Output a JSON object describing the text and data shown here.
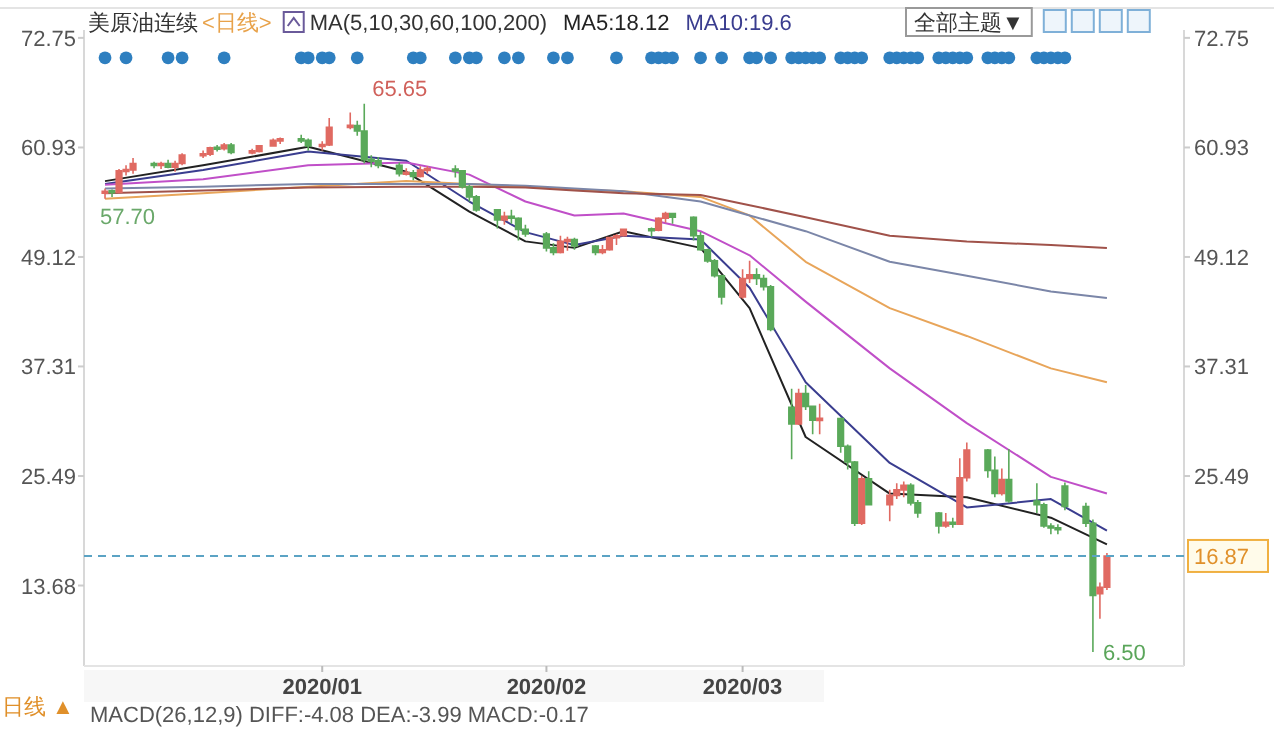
{
  "chart_data": {
    "type": "candlestick",
    "title": "美原油连续",
    "subtitle": "<日线>",
    "legend_title": "MA(5,10,30,60,100,200)",
    "legend": "top",
    "x": [
      "2019-12-02",
      "2019-12-03",
      "2019-12-04",
      "2019-12-05",
      "2019-12-06",
      "2019-12-09",
      "2019-12-10",
      "2019-12-11",
      "2019-12-12",
      "2019-12-13",
      "2019-12-16",
      "2019-12-17",
      "2019-12-18",
      "2019-12-19",
      "2019-12-20",
      "2019-12-23",
      "2019-12-24",
      "2019-12-26",
      "2019-12-27",
      "2019-12-30",
      "2019-12-31",
      "2020-01-02",
      "2020-01-03",
      "2020-01-06",
      "2020-01-07",
      "2020-01-08",
      "2020-01-09",
      "2020-01-10",
      "2020-01-13",
      "2020-01-14",
      "2020-01-15",
      "2020-01-16",
      "2020-01-17",
      "2020-01-21",
      "2020-01-22",
      "2020-01-23",
      "2020-01-24",
      "2020-01-27",
      "2020-01-28",
      "2020-01-29",
      "2020-01-30",
      "2020-01-31",
      "2020-02-03",
      "2020-02-04",
      "2020-02-05",
      "2020-02-06",
      "2020-02-07",
      "2020-02-10",
      "2020-02-11",
      "2020-02-12",
      "2020-02-13",
      "2020-02-14",
      "2020-02-18",
      "2020-02-19",
      "2020-02-20",
      "2020-02-21",
      "2020-02-24",
      "2020-02-25",
      "2020-02-26",
      "2020-02-27",
      "2020-02-28",
      "2020-03-02",
      "2020-03-03",
      "2020-03-04",
      "2020-03-05",
      "2020-03-06",
      "2020-03-09",
      "2020-03-10",
      "2020-03-11",
      "2020-03-12",
      "2020-03-13",
      "2020-03-16",
      "2020-03-17",
      "2020-03-18",
      "2020-03-19",
      "2020-03-20",
      "2020-03-23",
      "2020-03-24",
      "2020-03-25",
      "2020-03-26",
      "2020-03-27",
      "2020-03-30",
      "2020-03-31",
      "2020-04-01",
      "2020-04-02",
      "2020-04-03",
      "2020-04-06",
      "2020-04-07",
      "2020-04-08",
      "2020-04-09",
      "2020-04-13",
      "2020-04-14",
      "2020-04-15",
      "2020-04-16",
      "2020-04-17",
      "2020-04-20",
      "2020-04-21",
      "2020-04-22",
      "2020-04-23"
    ],
    "ohlc": [
      [
        56.0,
        56.5,
        55.4,
        56.2
      ],
      [
        56.2,
        56.4,
        55.6,
        56.1
      ],
      [
        56.1,
        58.6,
        56.0,
        58.4
      ],
      [
        58.4,
        59.0,
        57.9,
        58.5
      ],
      [
        58.5,
        59.8,
        58.1,
        59.2
      ],
      [
        59.2,
        59.4,
        58.7,
        59.0
      ],
      [
        59.0,
        59.4,
        58.6,
        59.2
      ],
      [
        59.2,
        59.6,
        58.7,
        58.8
      ],
      [
        58.8,
        59.5,
        58.3,
        59.2
      ],
      [
        59.2,
        60.3,
        59.0,
        60.1
      ],
      [
        60.1,
        60.6,
        59.8,
        60.2
      ],
      [
        60.2,
        61.0,
        60.0,
        60.9
      ],
      [
        60.9,
        61.2,
        60.5,
        60.8
      ],
      [
        60.8,
        61.4,
        60.6,
        61.2
      ],
      [
        61.2,
        61.4,
        60.2,
        60.4
      ],
      [
        60.4,
        60.8,
        60.2,
        60.5
      ],
      [
        60.5,
        61.2,
        60.4,
        61.1
      ],
      [
        61.1,
        61.9,
        61.0,
        61.7
      ],
      [
        61.7,
        62.0,
        61.3,
        61.8
      ],
      [
        61.8,
        62.3,
        61.4,
        61.7
      ],
      [
        61.7,
        61.9,
        60.6,
        61.1
      ],
      [
        61.1,
        61.6,
        60.6,
        61.2
      ],
      [
        61.2,
        64.1,
        61.1,
        63.1
      ],
      [
        63.1,
        64.7,
        62.9,
        63.3
      ],
      [
        63.3,
        63.8,
        62.2,
        62.7
      ],
      [
        62.7,
        65.65,
        59.2,
        59.6
      ],
      [
        59.6,
        60.1,
        58.8,
        59.5
      ],
      [
        59.5,
        59.9,
        58.7,
        59.0
      ],
      [
        59.0,
        59.3,
        57.8,
        58.1
      ],
      [
        58.1,
        58.7,
        57.9,
        58.2
      ],
      [
        58.2,
        58.5,
        57.4,
        57.8
      ],
      [
        57.8,
        58.9,
        57.7,
        58.5
      ],
      [
        58.5,
        58.9,
        58.1,
        58.6
      ],
      [
        58.6,
        59.0,
        57.7,
        58.4
      ],
      [
        58.4,
        58.5,
        56.5,
        56.7
      ],
      [
        56.7,
        56.9,
        55.1,
        55.6
      ],
      [
        55.6,
        55.8,
        54.0,
        54.2
      ],
      [
        54.2,
        54.3,
        52.2,
        53.1
      ],
      [
        53.1,
        54.0,
        52.6,
        53.5
      ],
      [
        53.5,
        54.2,
        52.7,
        53.3
      ],
      [
        53.3,
        53.4,
        50.9,
        52.1
      ],
      [
        52.1,
        52.6,
        51.3,
        51.6
      ],
      [
        51.6,
        51.8,
        49.7,
        50.1
      ],
      [
        50.1,
        50.6,
        49.3,
        49.6
      ],
      [
        49.6,
        51.4,
        49.5,
        50.8
      ],
      [
        50.8,
        51.3,
        49.8,
        51.0
      ],
      [
        51.0,
        51.2,
        49.9,
        50.3
      ],
      [
        50.3,
        50.4,
        49.3,
        49.6
      ],
      [
        49.6,
        50.4,
        49.4,
        49.9
      ],
      [
        49.9,
        51.3,
        49.8,
        51.2
      ],
      [
        51.2,
        51.6,
        50.4,
        51.4
      ],
      [
        51.4,
        52.2,
        51.3,
        52.1
      ],
      [
        52.1,
        52.3,
        51.3,
        52.0
      ],
      [
        52.0,
        53.4,
        51.9,
        53.3
      ],
      [
        53.3,
        54.0,
        52.8,
        53.8
      ],
      [
        53.8,
        53.9,
        52.7,
        53.4
      ],
      [
        53.4,
        53.5,
        50.9,
        51.4
      ],
      [
        51.4,
        51.8,
        49.8,
        49.9
      ],
      [
        49.9,
        50.0,
        48.5,
        48.7
      ],
      [
        48.7,
        48.9,
        46.9,
        47.1
      ],
      [
        47.1,
        47.2,
        44.0,
        44.8
      ],
      [
        44.8,
        47.8,
        44.6,
        46.8
      ],
      [
        46.8,
        48.7,
        46.3,
        47.2
      ],
      [
        47.2,
        47.9,
        46.1,
        46.8
      ],
      [
        46.8,
        47.2,
        45.5,
        45.9
      ],
      [
        45.9,
        46.1,
        41.1,
        41.3
      ],
      [
        32.9,
        34.9,
        27.3,
        31.1
      ],
      [
        31.1,
        34.9,
        31.0,
        34.4
      ],
      [
        34.4,
        35.3,
        32.6,
        33.0
      ],
      [
        33.0,
        33.1,
        30.0,
        31.5
      ],
      [
        31.5,
        33.3,
        30.0,
        31.7
      ],
      [
        31.7,
        31.8,
        28.0,
        28.7
      ],
      [
        28.7,
        28.9,
        26.2,
        27.0
      ],
      [
        27.0,
        27.1,
        20.1,
        20.4
      ],
      [
        20.4,
        25.5,
        20.2,
        25.2
      ],
      [
        25.2,
        26.0,
        22.3,
        22.4
      ],
      [
        22.4,
        24.0,
        20.6,
        23.4
      ],
      [
        23.4,
        24.7,
        23.0,
        24.0
      ],
      [
        24.0,
        24.9,
        23.2,
        24.5
      ],
      [
        24.5,
        24.7,
        22.3,
        22.6
      ],
      [
        22.6,
        22.9,
        21.0,
        21.5
      ],
      [
        21.5,
        21.6,
        19.3,
        20.1
      ],
      [
        20.1,
        21.5,
        19.9,
        20.5
      ],
      [
        20.5,
        21.0,
        19.9,
        20.3
      ],
      [
        20.3,
        27.4,
        20.2,
        25.3
      ],
      [
        25.3,
        29.1,
        24.9,
        28.3
      ],
      [
        28.3,
        28.4,
        25.3,
        26.1
      ],
      [
        26.1,
        27.6,
        23.2,
        23.6
      ],
      [
        23.6,
        26.3,
        23.4,
        25.1
      ],
      [
        25.1,
        28.4,
        22.6,
        22.8
      ],
      [
        22.8,
        24.7,
        21.5,
        22.4
      ],
      [
        22.4,
        22.6,
        19.9,
        20.1
      ],
      [
        20.1,
        20.4,
        19.2,
        19.9
      ],
      [
        19.9,
        20.3,
        19.2,
        19.7
      ],
      [
        24.4,
        24.8,
        21.8,
        22.2
      ],
      [
        22.2,
        22.6,
        20.0,
        20.4
      ],
      [
        20.4,
        20.8,
        6.5,
        12.6
      ],
      [
        12.8,
        14.0,
        10.1,
        13.5
      ],
      [
        13.5,
        17.2,
        13.2,
        16.87
      ]
    ],
    "colors": [
      "#e06a62",
      "#5aa95a",
      "#e06a62",
      "#e06a62",
      "#e06a62",
      "#5aa95a",
      "#e06a62",
      "#5aa95a",
      "#e06a62",
      "#e06a62",
      "#e06a62",
      "#e06a62",
      "#5aa95a",
      "#e06a62",
      "#5aa95a",
      "#e06a62",
      "#e06a62",
      "#e06a62",
      "#e06a62",
      "#5aa95a",
      "#5aa95a",
      "#e06a62",
      "#e06a62",
      "#e06a62",
      "#5aa95a",
      "#5aa95a",
      "#5aa95a",
      "#5aa95a",
      "#5aa95a",
      "#e06a62",
      "#5aa95a",
      "#e06a62",
      "#e06a62",
      "#5aa95a",
      "#5aa95a",
      "#5aa95a",
      "#5aa95a",
      "#5aa95a",
      "#e06a62",
      "#5aa95a",
      "#5aa95a",
      "#5aa95a",
      "#5aa95a",
      "#5aa95a",
      "#e06a62",
      "#e06a62",
      "#5aa95a",
      "#5aa95a",
      "#e06a62",
      "#e06a62",
      "#e06a62",
      "#e06a62",
      "#5aa95a",
      "#e06a62",
      "#e06a62",
      "#5aa95a",
      "#5aa95a",
      "#5aa95a",
      "#5aa95a",
      "#5aa95a",
      "#5aa95a",
      "#e06a62",
      "#e06a62",
      "#5aa95a",
      "#5aa95a",
      "#5aa95a",
      "#5aa95a",
      "#e06a62",
      "#5aa95a",
      "#5aa95a",
      "#e06a62",
      "#5aa95a",
      "#5aa95a",
      "#5aa95a",
      "#e06a62",
      "#5aa95a",
      "#e06a62",
      "#e06a62",
      "#e06a62",
      "#5aa95a",
      "#5aa95a",
      "#5aa95a",
      "#e06a62",
      "#5aa95a",
      "#e06a62",
      "#e06a62",
      "#5aa95a",
      "#5aa95a",
      "#e06a62",
      "#5aa95a",
      "#5aa95a",
      "#5aa95a",
      "#5aa95a",
      "#5aa95a",
      "#5aa95a",
      "#5aa95a",
      "#5aa95a",
      "#e06a62",
      "#e06a62"
    ],
    "series": [
      {
        "name": "MA5:18.12",
        "type": "line",
        "color": "#222222",
        "x": [
          "2019-12-02",
          "2019-12-16",
          "2019-12-31",
          "2020-01-14",
          "2020-01-23",
          "2020-01-31",
          "2020-02-07",
          "2020-02-14",
          "2020-02-25",
          "2020-03-03",
          "2020-03-11",
          "2020-03-23",
          "2020-04-03",
          "2020-04-15",
          "2020-04-23"
        ],
        "values": [
          57.3,
          59.0,
          61.0,
          58.3,
          54.0,
          50.8,
          50.1,
          51.9,
          50.1,
          43.6,
          29.7,
          23.6,
          23.2,
          21.0,
          18.12
        ]
      },
      {
        "name": "MA10:19.6",
        "type": "line",
        "color": "#3a3d8f",
        "x": [
          "2019-12-02",
          "2019-12-16",
          "2019-12-31",
          "2020-01-14",
          "2020-01-23",
          "2020-01-31",
          "2020-02-07",
          "2020-02-14",
          "2020-02-25",
          "2020-03-03",
          "2020-03-11",
          "2020-03-23",
          "2020-04-03",
          "2020-04-15",
          "2020-04-23"
        ],
        "values": [
          57.0,
          58.5,
          60.5,
          59.5,
          55.1,
          51.8,
          50.4,
          51.4,
          51.0,
          45.8,
          35.6,
          26.9,
          22.1,
          23.0,
          19.6
        ]
      },
      {
        "type": "line",
        "color": "#c04fc8",
        "x": [
          "2019-12-02",
          "2019-12-16",
          "2019-12-31",
          "2020-01-14",
          "2020-01-23",
          "2020-01-31",
          "2020-02-07",
          "2020-02-14",
          "2020-02-25",
          "2020-03-03",
          "2020-03-11",
          "2020-03-23",
          "2020-04-03",
          "2020-04-15",
          "2020-04-23"
        ],
        "values": [
          56.9,
          57.5,
          59.0,
          59.3,
          58.0,
          55.1,
          53.6,
          53.8,
          51.9,
          49.3,
          44.3,
          37.1,
          31.2,
          25.4,
          23.6
        ]
      },
      {
        "type": "line",
        "color": "#e8a55a",
        "x": [
          "2019-12-02",
          "2019-12-16",
          "2019-12-31",
          "2020-01-14",
          "2020-01-23",
          "2020-01-31",
          "2020-02-07",
          "2020-02-14",
          "2020-02-25",
          "2020-03-03",
          "2020-03-11",
          "2020-03-23",
          "2020-04-03",
          "2020-04-15",
          "2020-04-23"
        ],
        "values": [
          55.4,
          56.0,
          56.7,
          57.3,
          57.0,
          56.7,
          56.4,
          56.2,
          55.6,
          53.6,
          48.6,
          43.6,
          40.6,
          37.1,
          35.6
        ]
      },
      {
        "type": "line",
        "color": "#7b86a8",
        "x": [
          "2019-12-02",
          "2019-12-16",
          "2019-12-31",
          "2020-01-14",
          "2020-01-23",
          "2020-01-31",
          "2020-02-07",
          "2020-02-14",
          "2020-02-25",
          "2020-03-03",
          "2020-03-11",
          "2020-03-23",
          "2020-04-03",
          "2020-04-15",
          "2020-04-23"
        ],
        "values": [
          56.5,
          56.7,
          57.0,
          57.0,
          57.0,
          56.8,
          56.5,
          56.2,
          55.1,
          53.6,
          51.9,
          48.6,
          47.1,
          45.4,
          44.7
        ]
      },
      {
        "type": "line",
        "color": "#a0524a",
        "x": [
          "2019-12-02",
          "2019-12-16",
          "2019-12-31",
          "2020-01-14",
          "2020-01-23",
          "2020-01-31",
          "2020-02-07",
          "2020-02-14",
          "2020-02-25",
          "2020-03-03",
          "2020-03-11",
          "2020-03-23",
          "2020-04-03",
          "2020-04-15",
          "2020-04-23"
        ],
        "values": [
          56.0,
          56.3,
          56.6,
          56.7,
          56.7,
          56.6,
          56.3,
          56.0,
          55.8,
          54.7,
          53.4,
          51.4,
          50.8,
          50.4,
          50.1
        ]
      },
      {
        "type": "scatter",
        "marker": "circle",
        "color": "#2e7fc0",
        "x": [
          "2019-12-02",
          "2019-12-05",
          "2019-12-11",
          "2019-12-13",
          "2019-12-19",
          "2019-12-30",
          "2019-12-31",
          "2020-01-02",
          "2020-01-03",
          "2020-01-07",
          "2020-01-15",
          "2020-01-16",
          "2020-01-21",
          "2020-01-23",
          "2020-01-24",
          "2020-01-28",
          "2020-01-30",
          "2020-02-04",
          "2020-02-06",
          "2020-02-13",
          "2020-02-18",
          "2020-02-19",
          "2020-02-20",
          "2020-02-21",
          "2020-02-25",
          "2020-02-28",
          "2020-03-03",
          "2020-03-04",
          "2020-03-06",
          "2020-03-09",
          "2020-03-10",
          "2020-03-11",
          "2020-03-12",
          "2020-03-13",
          "2020-03-16",
          "2020-03-17",
          "2020-03-18",
          "2020-03-19",
          "2020-03-23",
          "2020-03-24",
          "2020-03-25",
          "2020-03-26",
          "2020-03-27",
          "2020-03-30",
          "2020-03-31",
          "2020-04-01",
          "2020-04-02",
          "2020-04-03",
          "2020-04-06",
          "2020-04-07",
          "2020-04-08",
          "2020-04-09",
          "2020-04-13",
          "2020-04-14",
          "2020-04-15",
          "2020-04-16",
          "2020-04-17"
        ],
        "values": [
          70.6,
          70.6,
          70.6,
          70.6,
          70.6,
          70.6,
          70.6,
          70.6,
          70.6,
          70.6,
          70.6,
          70.6,
          70.6,
          70.6,
          70.6,
          70.6,
          70.6,
          70.6,
          70.6,
          70.6,
          70.6,
          70.6,
          70.6,
          70.6,
          70.6,
          70.6,
          70.6,
          70.6,
          70.6,
          70.6,
          70.6,
          70.6,
          70.6,
          70.6,
          70.6,
          70.6,
          70.6,
          70.6,
          70.6,
          70.6,
          70.6,
          70.6,
          70.6,
          70.6,
          70.6,
          70.6,
          70.6,
          70.6,
          70.6,
          70.6,
          70.6,
          70.6,
          70.6,
          70.6,
          70.6,
          70.6,
          70.6
        ]
      }
    ],
    "xlim": [
      "2019-11-29",
      "2020-05-04"
    ],
    "xticks": [
      {
        "value": "2020-01-02",
        "label": "2020/01"
      },
      {
        "value": "2020-02-03",
        "label": "2020/02"
      },
      {
        "value": "2020-03-02",
        "label": "2020/03"
      }
    ],
    "ylim": [
      5.0,
      73.6
    ],
    "yticks": [
      13.68,
      25.49,
      37.31,
      49.12,
      60.93,
      72.75
    ],
    "y2lim": [
      5.0,
      73.6
    ],
    "y2ticks": [
      25.49,
      37.31,
      49.12,
      60.93,
      72.75
    ],
    "ref_lines": [
      {
        "axis": "y2",
        "value": 16.87,
        "label": "16.87",
        "color": "#5ba3c4",
        "line_style": "dashed"
      }
    ],
    "annotations": [
      {
        "text": "65.65",
        "x": "2020-01-08",
        "y": 65.65
      },
      {
        "text": "6.50",
        "x": "2020-04-21",
        "y": 6.5
      },
      "57.70",
      "全部主题▼",
      "日线 ▲",
      "MACD(26,12,9) DIFF:-4.08 DEA:-3.99 MACD:-0.17"
    ]
  }
}
